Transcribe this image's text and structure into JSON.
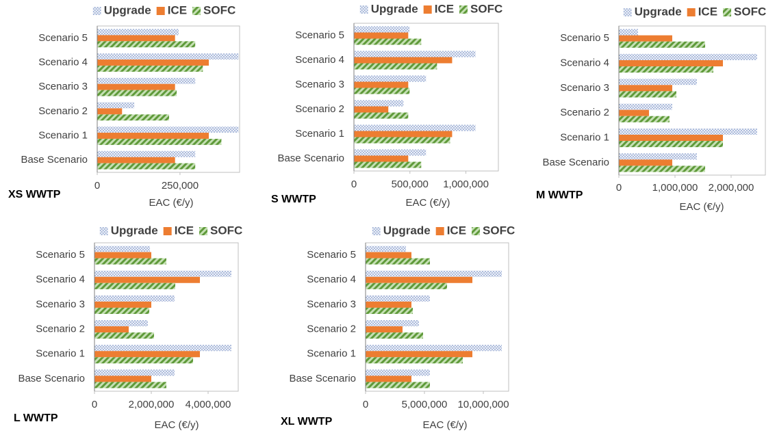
{
  "chart_data": [
    {
      "type": "bar",
      "orientation": "horizontal",
      "title": "XS WWTP",
      "x_label": "EAC (€/y)",
      "categories": [
        "Base Scenario",
        "Scenario 1",
        "Scenario 2",
        "Scenario 3",
        "Scenario 4",
        "Scenario 5"
      ],
      "series": [
        {
          "name": "Upgrade",
          "color": "#7f96c8",
          "pattern": "dots",
          "values": [
            296000,
            427000,
            112000,
            296000,
            427000,
            246000
          ]
        },
        {
          "name": "ICE",
          "color": "#ed7d31",
          "pattern": "solid",
          "values": [
            235000,
            337000,
            75000,
            235000,
            337000,
            235000
          ]
        },
        {
          "name": "SOFC",
          "color": "#5f9a3a",
          "pattern": "stripes",
          "values": [
            296000,
            375000,
            217000,
            240000,
            319000,
            296000
          ]
        }
      ],
      "xlim": [
        0,
        430000
      ],
      "xticks": [
        0,
        {
          "value": 250000,
          "label": "250,000"
        }
      ],
      "grid": false,
      "legend": "top"
    },
    {
      "type": "bar",
      "orientation": "horizontal",
      "title": "S WWTP",
      "x_label": "EAC (€/y)",
      "categories": [
        "Base Scenario",
        "Scenario 1",
        "Scenario 2",
        "Scenario 3",
        "Scenario 4",
        "Scenario 5"
      ],
      "series": [
        {
          "name": "Upgrade",
          "color": "#7f96c8",
          "pattern": "dots",
          "values": [
            644000,
            1086000,
            442000,
            644000,
            1086000,
            497000
          ]
        },
        {
          "name": "ICE",
          "color": "#ed7d31",
          "pattern": "solid",
          "values": [
            485000,
            877000,
            307000,
            485000,
            877000,
            485000
          ]
        },
        {
          "name": "SOFC",
          "color": "#5f9a3a",
          "pattern": "stripes",
          "values": [
            601000,
            859000,
            485000,
            497000,
            742000,
            601000
          ]
        }
      ],
      "xlim": [
        0,
        1290000
      ],
      "xticks": [
        0,
        {
          "value": 500000,
          "label": "500,000"
        },
        {
          "value": 1000000,
          "label": "1,000,000"
        }
      ],
      "grid": false,
      "legend": "top"
    },
    {
      "type": "bar",
      "orientation": "horizontal",
      "title": "M WWTP",
      "x_label": "EAC (€/y)",
      "categories": [
        "Base Scenario",
        "Scenario 1",
        "Scenario 2",
        "Scenario 3",
        "Scenario 4",
        "Scenario 5"
      ],
      "series": [
        {
          "name": "Upgrade",
          "color": "#7f96c8",
          "pattern": "dots",
          "values": [
            1390000,
            2463000,
            951000,
            1390000,
            2463000,
            341000
          ]
        },
        {
          "name": "ICE",
          "color": "#ed7d31",
          "pattern": "solid",
          "values": [
            951000,
            1854000,
            537000,
            951000,
            1854000,
            951000
          ]
        },
        {
          "name": "SOFC",
          "color": "#5f9a3a",
          "pattern": "stripes",
          "values": [
            1537000,
            1854000,
            902000,
            1024000,
            1683000,
            1537000
          ]
        }
      ],
      "xlim": [
        0,
        2610000
      ],
      "xticks": [
        0,
        {
          "value": 1000000,
          "label": "1,000,000"
        },
        {
          "value": 2000000,
          "label": "2,000,000"
        }
      ],
      "grid": false,
      "legend": "top"
    },
    {
      "type": "bar",
      "orientation": "horizontal",
      "title": "L WWTP",
      "x_label": "EAC (€/y)",
      "categories": [
        "Base Scenario",
        "Scenario 1",
        "Scenario 2",
        "Scenario 3",
        "Scenario 4",
        "Scenario 5"
      ],
      "series": [
        {
          "name": "Upgrade",
          "color": "#7f96c8",
          "pattern": "dots",
          "values": [
            2819000,
            4819000,
            1880000,
            2819000,
            4819000,
            1952000
          ]
        },
        {
          "name": "ICE",
          "color": "#ed7d31",
          "pattern": "solid",
          "values": [
            2000000,
            3711000,
            1205000,
            2000000,
            3711000,
            2000000
          ]
        },
        {
          "name": "SOFC",
          "color": "#5f9a3a",
          "pattern": "stripes",
          "values": [
            2530000,
            3470000,
            2096000,
            1928000,
            2843000,
            2530000
          ]
        }
      ],
      "xlim": [
        0,
        5060000
      ],
      "xticks": [
        0,
        {
          "value": 2000000,
          "label": "2,000,000"
        },
        {
          "value": 4000000,
          "label": "4,000,000"
        }
      ],
      "grid": false,
      "legend": "top"
    },
    {
      "type": "bar",
      "orientation": "horizontal",
      "title": "XL WWTP",
      "x_label": "EAC (€/y)",
      "categories": [
        "Base Scenario",
        "Scenario 1",
        "Scenario 2",
        "Scenario 3",
        "Scenario 4",
        "Scenario 5"
      ],
      "series": [
        {
          "name": "Upgrade",
          "color": "#7f96c8",
          "pattern": "dots",
          "values": [
            5465000,
            11570000,
            4535000,
            5465000,
            11570000,
            3430000
          ]
        },
        {
          "name": "ICE",
          "color": "#ed7d31",
          "pattern": "solid",
          "values": [
            3895000,
            9070000,
            3140000,
            3895000,
            9070000,
            3895000
          ]
        },
        {
          "name": "SOFC",
          "color": "#5f9a3a",
          "pattern": "stripes",
          "values": [
            5465000,
            8256000,
            4884000,
            4012000,
            6919000,
            5465000
          ]
        }
      ],
      "xlim": [
        0,
        12150000
      ],
      "xticks": [
        0,
        {
          "value": 5000000,
          "label": "5,000,000"
        },
        {
          "value": 10000000,
          "label": "10,000,000"
        }
      ],
      "grid": false,
      "legend": "top"
    }
  ]
}
